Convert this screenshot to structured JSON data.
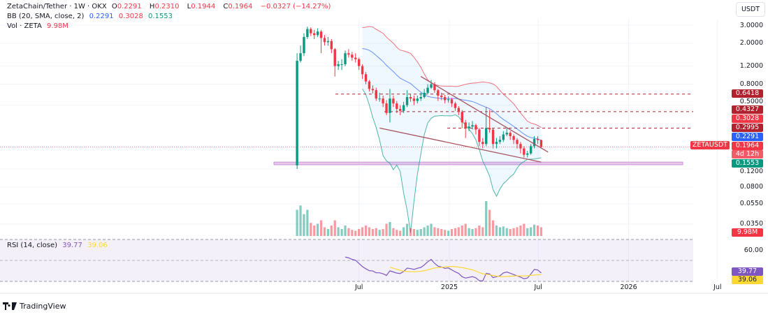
{
  "header": {
    "symbol": "ZetaChain/Tether · 1W · OKX",
    "o_label": "O",
    "o": "0.2291",
    "h_label": "H",
    "h": "0.2310",
    "l_label": "L",
    "l": "0.1944",
    "c_label": "C",
    "c": "0.1964",
    "change": "−0.0327 (−14.27%)",
    "bb_label": "BB (20, SMA, close, 2)",
    "bb_basis": "0.2291",
    "bb_upper": "0.3028",
    "bb_lower": "0.1553",
    "vol_label": "Vol · ZETA",
    "vol": "9.98M",
    "rsi_label": "RSI (14, close)",
    "rsi": "39.77",
    "rsi_ma": "39.06"
  },
  "currency_button": "USDT",
  "symbol_tag": "ZETAUSDT",
  "countdown": "4d 12h",
  "brand": "TradingView",
  "colors": {
    "up": "#089981",
    "down": "#f23645",
    "bb_basis": "#2962ff",
    "bb_upper": "#f23645",
    "bb_lower": "#089981",
    "rsi": "#7e57c2",
    "rsi_ma": "#fdd835",
    "level": "#b2222e",
    "zone": "#ce93d8"
  },
  "price_labels": [
    {
      "text": "0.6418",
      "color": "#b2222e"
    },
    {
      "text": "0.4327",
      "color": "#b2222e"
    },
    {
      "text": "0.3028",
      "color": "#f23645"
    },
    {
      "text": "0.2995",
      "color": "#b2222e"
    },
    {
      "text": "0.2291",
      "color": "#2962ff"
    },
    {
      "text": "0.1964",
      "color": "#f23645"
    },
    {
      "text": "0.1553",
      "color": "#089981"
    },
    {
      "text": "9.98M",
      "color": "#f23645"
    },
    {
      "text": "39.77",
      "color": "#7e57c2"
    },
    {
      "text": "39.06",
      "color": "#fdd835"
    }
  ],
  "chart_data": {
    "type": "candlestick",
    "interval": "1W",
    "y_scale": "log",
    "y_ticks": [
      "3.0000",
      "2.0000",
      "1.2000",
      "0.8000",
      "0.5000",
      "0.1200",
      "0.0800",
      "0.0550",
      "0.0350"
    ],
    "rsi_ticks": [
      "60.00"
    ],
    "x_ticks": [
      {
        "label": "Jul",
        "date": "2024-07-01"
      },
      {
        "label": "2025",
        "date": "2025-01-01"
      },
      {
        "label": "Jul",
        "date": "2025-07-01"
      },
      {
        "label": "2026",
        "date": "2026-01-01"
      },
      {
        "label": "Jul",
        "date": "2026-07-01"
      }
    ],
    "levels": [
      0.6418,
      0.4327,
      0.2995
    ],
    "support_zone": [
      0.132,
      0.14
    ],
    "trendlines": [
      {
        "from": [
          "2024-11-04",
          0.95
        ],
        "to": [
          "2025-07-21",
          0.175
        ]
      },
      {
        "from": [
          "2024-08-12",
          0.3
        ],
        "to": [
          "2025-07-07",
          0.14
        ]
      }
    ],
    "dates": [
      "2024-02-26",
      "2024-03-04",
      "2024-03-11",
      "2024-03-18",
      "2024-03-25",
      "2024-04-01",
      "2024-04-08",
      "2024-04-15",
      "2024-04-22",
      "2024-04-29",
      "2024-05-06",
      "2024-05-13",
      "2024-05-20",
      "2024-05-27",
      "2024-06-03",
      "2024-06-10",
      "2024-06-17",
      "2024-06-24",
      "2024-07-01",
      "2024-07-08",
      "2024-07-15",
      "2024-07-22",
      "2024-07-29",
      "2024-08-05",
      "2024-08-12",
      "2024-08-19",
      "2024-08-26",
      "2024-09-02",
      "2024-09-09",
      "2024-09-16",
      "2024-09-23",
      "2024-09-30",
      "2024-10-07",
      "2024-10-14",
      "2024-10-21",
      "2024-10-28",
      "2024-11-04",
      "2024-11-11",
      "2024-11-18",
      "2024-11-25",
      "2024-12-02",
      "2024-12-09",
      "2024-12-16",
      "2024-12-23",
      "2024-12-30",
      "2025-01-06",
      "2025-01-13",
      "2025-01-20",
      "2025-01-27",
      "2025-02-03",
      "2025-02-10",
      "2025-02-17",
      "2025-02-24",
      "2025-03-03",
      "2025-03-10",
      "2025-03-17",
      "2025-03-24",
      "2025-03-31",
      "2025-04-07",
      "2025-04-14",
      "2025-04-21",
      "2025-04-28",
      "2025-05-05",
      "2025-05-12",
      "2025-05-19",
      "2025-05-26",
      "2025-06-02",
      "2025-06-09",
      "2025-06-16",
      "2025-06-23",
      "2025-06-30",
      "2025-07-07"
    ],
    "open": [
      0.13,
      1.35,
      1.6,
      2.3,
      2.75,
      2.5,
      2.4,
      2.6,
      2.25,
      2.05,
      2.1,
      1.75,
      1.2,
      1.25,
      1.25,
      1.6,
      1.55,
      1.45,
      1.4,
      1.2,
      1.0,
      0.85,
      0.72,
      0.7,
      0.58,
      0.58,
      0.52,
      0.42,
      0.58,
      0.52,
      0.46,
      0.44,
      0.5,
      0.6,
      0.58,
      0.55,
      0.58,
      0.6,
      0.66,
      0.74,
      0.8,
      0.7,
      0.62,
      0.6,
      0.56,
      0.57,
      0.52,
      0.47,
      0.43,
      0.34,
      0.3,
      0.31,
      0.32,
      0.29,
      0.22,
      0.21,
      0.3,
      0.29,
      0.21,
      0.22,
      0.23,
      0.26,
      0.27,
      0.25,
      0.23,
      0.21,
      0.19,
      0.165,
      0.17,
      0.2,
      0.235,
      0.2291
    ],
    "high": [
      1.6,
      1.9,
      2.5,
      2.9,
      2.85,
      2.7,
      2.8,
      2.7,
      2.4,
      2.3,
      2.2,
      1.8,
      1.35,
      1.4,
      1.7,
      1.75,
      1.65,
      1.6,
      1.45,
      1.25,
      1.05,
      0.88,
      0.78,
      0.74,
      0.66,
      0.62,
      0.56,
      0.72,
      0.62,
      0.55,
      0.5,
      0.54,
      0.7,
      0.64,
      0.62,
      0.62,
      0.66,
      0.72,
      0.8,
      0.88,
      0.84,
      0.72,
      0.66,
      0.63,
      0.61,
      0.59,
      0.54,
      0.49,
      0.45,
      0.36,
      0.34,
      0.35,
      0.33,
      0.3,
      0.24,
      0.48,
      0.45,
      0.3,
      0.24,
      0.25,
      0.28,
      0.3,
      0.28,
      0.26,
      0.24,
      0.22,
      0.2,
      0.18,
      0.21,
      0.25,
      0.25,
      0.231
    ],
    "low": [
      0.12,
      1.3,
      1.5,
      2.2,
      2.35,
      2.2,
      2.3,
      1.6,
      1.9,
      1.9,
      1.6,
      0.95,
      1.1,
      1.1,
      1.2,
      1.45,
      1.35,
      1.3,
      1.1,
      0.9,
      0.8,
      0.68,
      0.65,
      0.55,
      0.54,
      0.48,
      0.4,
      0.34,
      0.48,
      0.42,
      0.4,
      0.42,
      0.48,
      0.54,
      0.5,
      0.52,
      0.55,
      0.58,
      0.64,
      0.72,
      0.66,
      0.55,
      0.56,
      0.52,
      0.53,
      0.48,
      0.44,
      0.4,
      0.3,
      0.24,
      0.28,
      0.29,
      0.26,
      0.2,
      0.19,
      0.2,
      0.27,
      0.19,
      0.19,
      0.21,
      0.22,
      0.25,
      0.23,
      0.21,
      0.19,
      0.17,
      0.155,
      0.155,
      0.165,
      0.19,
      0.21,
      0.1944
    ],
    "close": [
      1.35,
      1.6,
      2.3,
      2.75,
      2.5,
      2.4,
      2.6,
      2.25,
      2.05,
      2.1,
      1.75,
      1.2,
      1.25,
      1.25,
      1.6,
      1.55,
      1.45,
      1.4,
      1.2,
      1.0,
      0.85,
      0.72,
      0.7,
      0.58,
      0.58,
      0.52,
      0.42,
      0.58,
      0.52,
      0.46,
      0.44,
      0.5,
      0.6,
      0.58,
      0.55,
      0.58,
      0.6,
      0.66,
      0.74,
      0.8,
      0.7,
      0.62,
      0.6,
      0.56,
      0.57,
      0.52,
      0.47,
      0.43,
      0.34,
      0.3,
      0.31,
      0.32,
      0.29,
      0.22,
      0.21,
      0.3,
      0.29,
      0.21,
      0.22,
      0.23,
      0.26,
      0.27,
      0.25,
      0.23,
      0.21,
      0.19,
      0.165,
      0.17,
      0.2,
      0.235,
      0.2291,
      0.1964
    ],
    "volume_m": [
      30,
      35,
      25,
      30,
      15,
      12,
      14,
      18,
      10,
      8,
      12,
      18,
      10,
      8,
      12,
      9,
      7,
      6,
      8,
      10,
      12,
      10,
      8,
      9,
      7,
      8,
      14,
      16,
      9,
      7,
      6,
      10,
      14,
      9,
      8,
      7,
      8,
      10,
      12,
      14,
      10,
      9,
      8,
      7,
      6,
      8,
      9,
      10,
      12,
      14,
      9,
      8,
      9,
      12,
      10,
      40,
      30,
      18,
      12,
      10,
      11,
      9,
      8,
      9,
      10,
      12,
      14,
      9,
      10,
      13,
      12,
      9.98
    ]
  }
}
